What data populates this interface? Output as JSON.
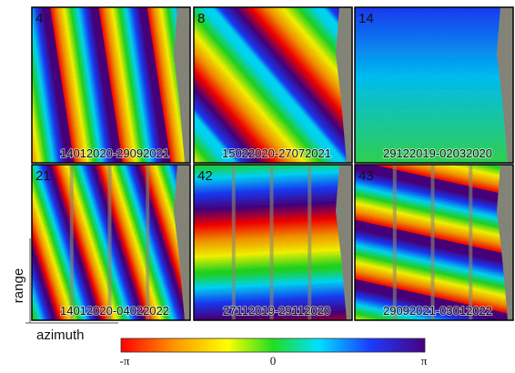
{
  "panels": [
    {
      "number": "4",
      "dates": "14012020-29092021"
    },
    {
      "number": "8",
      "dates": "15022020-27072021"
    },
    {
      "number": "14",
      "dates": "29122019-02032020"
    },
    {
      "number": "21",
      "dates": "14012020-04022022"
    },
    {
      "number": "42",
      "dates": "27112019-29112020"
    },
    {
      "number": "43",
      "dates": "29092021-03012022"
    }
  ],
  "axes": {
    "vertical": "range",
    "horizontal": "azimuth"
  },
  "colorbar": {
    "left": "-π",
    "middle": "0",
    "right": "π"
  }
}
